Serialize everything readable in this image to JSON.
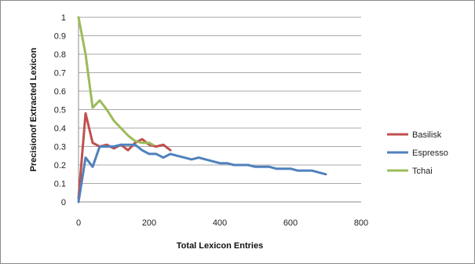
{
  "chart_data": {
    "type": "line",
    "title": "",
    "xlabel": "Total Lexicon Entries",
    "ylabel": "Precisionof Extracted Lexicon",
    "xlim": [
      0,
      800
    ],
    "ylim": [
      0,
      1
    ],
    "x_ticks": [
      0,
      200,
      400,
      600,
      800
    ],
    "y_ticks": [
      0,
      0.1,
      0.2,
      0.3,
      0.4,
      0.5,
      0.6,
      0.7,
      0.8,
      0.9,
      1
    ],
    "grid": "horizontal",
    "legend_position": "right",
    "series": [
      {
        "name": "Basilisk",
        "color": "#c0504d",
        "points": [
          [
            0,
            0.02
          ],
          [
            20,
            0.48
          ],
          [
            40,
            0.32
          ],
          [
            60,
            0.3
          ],
          [
            80,
            0.31
          ],
          [
            100,
            0.29
          ],
          [
            120,
            0.31
          ],
          [
            140,
            0.28
          ],
          [
            160,
            0.32
          ],
          [
            180,
            0.34
          ],
          [
            200,
            0.31
          ],
          [
            220,
            0.3
          ],
          [
            240,
            0.31
          ],
          [
            260,
            0.28
          ]
        ]
      },
      {
        "name": "Espresso",
        "color": "#4f81bd",
        "points": [
          [
            0,
            0.0
          ],
          [
            20,
            0.24
          ],
          [
            40,
            0.19
          ],
          [
            60,
            0.3
          ],
          [
            80,
            0.3
          ],
          [
            100,
            0.3
          ],
          [
            120,
            0.31
          ],
          [
            140,
            0.31
          ],
          [
            160,
            0.31
          ],
          [
            180,
            0.28
          ],
          [
            200,
            0.26
          ],
          [
            220,
            0.26
          ],
          [
            240,
            0.24
          ],
          [
            260,
            0.26
          ],
          [
            280,
            0.25
          ],
          [
            300,
            0.24
          ],
          [
            320,
            0.23
          ],
          [
            340,
            0.24
          ],
          [
            360,
            0.23
          ],
          [
            380,
            0.22
          ],
          [
            400,
            0.21
          ],
          [
            420,
            0.21
          ],
          [
            440,
            0.2
          ],
          [
            460,
            0.2
          ],
          [
            480,
            0.2
          ],
          [
            500,
            0.19
          ],
          [
            520,
            0.19
          ],
          [
            540,
            0.19
          ],
          [
            560,
            0.18
          ],
          [
            580,
            0.18
          ],
          [
            600,
            0.18
          ],
          [
            620,
            0.17
          ],
          [
            640,
            0.17
          ],
          [
            660,
            0.17
          ],
          [
            680,
            0.16
          ],
          [
            700,
            0.15
          ]
        ]
      },
      {
        "name": "Tchai",
        "color": "#9bbb59",
        "points": [
          [
            0,
            1.0
          ],
          [
            20,
            0.8
          ],
          [
            40,
            0.51
          ],
          [
            60,
            0.55
          ],
          [
            80,
            0.5
          ],
          [
            100,
            0.44
          ],
          [
            120,
            0.4
          ],
          [
            140,
            0.36
          ],
          [
            160,
            0.33
          ],
          [
            180,
            0.32
          ],
          [
            200,
            0.32
          ],
          [
            210,
            0.31
          ]
        ]
      }
    ]
  }
}
